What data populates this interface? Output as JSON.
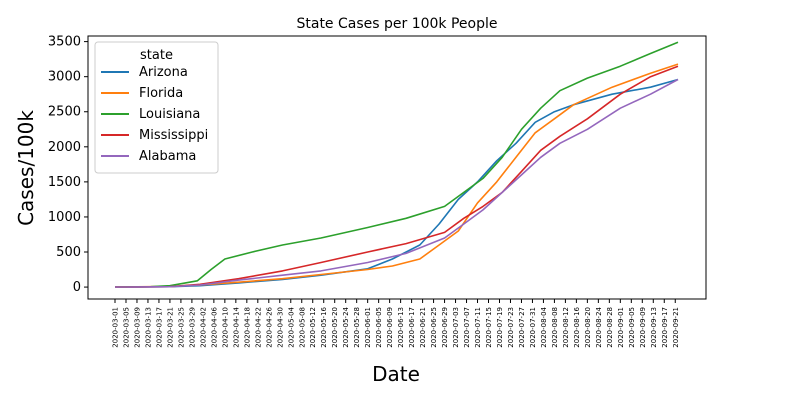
{
  "chart_data": {
    "type": "line",
    "title": "State Cases per 100k People",
    "xlabel": "Date",
    "ylabel": "Cases/100k",
    "x_start": "2020-03-01",
    "x_end": "2020-09-22",
    "x_tick_labels": [
      "2020-03-01",
      "2020-03-05",
      "2020-03-09",
      "2020-03-13",
      "2020-03-17",
      "2020-03-21",
      "2020-03-25",
      "2020-03-29",
      "2020-04-02",
      "2020-04-06",
      "2020-04-10",
      "2020-04-14",
      "2020-04-18",
      "2020-04-22",
      "2020-04-26",
      "2020-04-30",
      "2020-05-04",
      "2020-05-08",
      "2020-05-12",
      "2020-05-16",
      "2020-05-20",
      "2020-05-24",
      "2020-05-28",
      "2020-06-01",
      "2020-06-05",
      "2020-06-09",
      "2020-06-13",
      "2020-06-17",
      "2020-06-21",
      "2020-06-25",
      "2020-06-29",
      "2020-07-03",
      "2020-07-07",
      "2020-07-11",
      "2020-07-15",
      "2020-07-19",
      "2020-07-23",
      "2020-07-27",
      "2020-07-31",
      "2020-08-04",
      "2020-08-08",
      "2020-08-12",
      "2020-08-16",
      "2020-08-20",
      "2020-08-24",
      "2020-08-28",
      "2020-09-01",
      "2020-09-05",
      "2020-09-09",
      "2020-09-13",
      "2020-09-17",
      "2020-09-21"
    ],
    "y_ticks": [
      0,
      500,
      1000,
      1500,
      2000,
      2500,
      3000,
      3500
    ],
    "ylim": [
      -170,
      3580
    ],
    "grid": false,
    "legend": {
      "title": "state",
      "placement": "top-left"
    },
    "series": [
      {
        "name": "Arizona",
        "color": "#1f77b4",
        "points": [
          [
            "2020-03-01",
            0
          ],
          [
            "2020-03-21",
            5
          ],
          [
            "2020-04-01",
            20
          ],
          [
            "2020-04-15",
            60
          ],
          [
            "2020-05-01",
            110
          ],
          [
            "2020-05-15",
            170
          ],
          [
            "2020-06-01",
            260
          ],
          [
            "2020-06-10",
            400
          ],
          [
            "2020-06-20",
            600
          ],
          [
            "2020-06-27",
            900
          ],
          [
            "2020-07-04",
            1250
          ],
          [
            "2020-07-11",
            1500
          ],
          [
            "2020-07-18",
            1800
          ],
          [
            "2020-07-25",
            2050
          ],
          [
            "2020-08-01",
            2350
          ],
          [
            "2020-08-08",
            2500
          ],
          [
            "2020-08-15",
            2600
          ],
          [
            "2020-08-29",
            2750
          ],
          [
            "2020-09-12",
            2850
          ],
          [
            "2020-09-22",
            2960
          ]
        ]
      },
      {
        "name": "Florida",
        "color": "#ff7f0e",
        "points": [
          [
            "2020-03-01",
            0
          ],
          [
            "2020-03-21",
            10
          ],
          [
            "2020-04-01",
            30
          ],
          [
            "2020-04-15",
            70
          ],
          [
            "2020-05-01",
            120
          ],
          [
            "2020-05-15",
            180
          ],
          [
            "2020-06-01",
            250
          ],
          [
            "2020-06-10",
            300
          ],
          [
            "2020-06-20",
            400
          ],
          [
            "2020-06-27",
            600
          ],
          [
            "2020-07-04",
            800
          ],
          [
            "2020-07-11",
            1200
          ],
          [
            "2020-07-18",
            1500
          ],
          [
            "2020-07-25",
            1850
          ],
          [
            "2020-08-01",
            2200
          ],
          [
            "2020-08-08",
            2400
          ],
          [
            "2020-08-15",
            2600
          ],
          [
            "2020-08-29",
            2850
          ],
          [
            "2020-09-12",
            3050
          ],
          [
            "2020-09-22",
            3180
          ]
        ]
      },
      {
        "name": "Louisiana",
        "color": "#2ca02c",
        "points": [
          [
            "2020-03-01",
            0
          ],
          [
            "2020-03-14",
            5
          ],
          [
            "2020-03-21",
            20
          ],
          [
            "2020-03-31",
            90
          ],
          [
            "2020-04-05",
            250
          ],
          [
            "2020-04-10",
            400
          ],
          [
            "2020-04-20",
            500
          ],
          [
            "2020-05-01",
            600
          ],
          [
            "2020-05-15",
            700
          ],
          [
            "2020-06-01",
            850
          ],
          [
            "2020-06-15",
            980
          ],
          [
            "2020-06-29",
            1150
          ],
          [
            "2020-07-06",
            1350
          ],
          [
            "2020-07-13",
            1550
          ],
          [
            "2020-07-20",
            1850
          ],
          [
            "2020-07-27",
            2250
          ],
          [
            "2020-08-03",
            2550
          ],
          [
            "2020-08-10",
            2800
          ],
          [
            "2020-08-20",
            2980
          ],
          [
            "2020-09-01",
            3150
          ],
          [
            "2020-09-12",
            3330
          ],
          [
            "2020-09-22",
            3490
          ]
        ]
      },
      {
        "name": "Mississippi",
        "color": "#d62728",
        "points": [
          [
            "2020-03-01",
            0
          ],
          [
            "2020-03-21",
            5
          ],
          [
            "2020-04-01",
            40
          ],
          [
            "2020-04-15",
            120
          ],
          [
            "2020-05-01",
            230
          ],
          [
            "2020-05-15",
            350
          ],
          [
            "2020-06-01",
            500
          ],
          [
            "2020-06-15",
            620
          ],
          [
            "2020-06-29",
            780
          ],
          [
            "2020-07-06",
            980
          ],
          [
            "2020-07-13",
            1150
          ],
          [
            "2020-07-20",
            1350
          ],
          [
            "2020-07-27",
            1650
          ],
          [
            "2020-08-03",
            1950
          ],
          [
            "2020-08-10",
            2150
          ],
          [
            "2020-08-20",
            2400
          ],
          [
            "2020-09-01",
            2750
          ],
          [
            "2020-09-12",
            3000
          ],
          [
            "2020-09-22",
            3150
          ]
        ]
      },
      {
        "name": "Alabama",
        "color": "#9467bd",
        "points": [
          [
            "2020-03-01",
            0
          ],
          [
            "2020-03-21",
            5
          ],
          [
            "2020-04-01",
            30
          ],
          [
            "2020-04-15",
            100
          ],
          [
            "2020-05-01",
            170
          ],
          [
            "2020-05-15",
            230
          ],
          [
            "2020-06-01",
            350
          ],
          [
            "2020-06-15",
            480
          ],
          [
            "2020-06-29",
            700
          ],
          [
            "2020-07-06",
            900
          ],
          [
            "2020-07-13",
            1100
          ],
          [
            "2020-07-20",
            1350
          ],
          [
            "2020-07-27",
            1600
          ],
          [
            "2020-08-03",
            1850
          ],
          [
            "2020-08-10",
            2050
          ],
          [
            "2020-08-20",
            2250
          ],
          [
            "2020-09-01",
            2550
          ],
          [
            "2020-09-12",
            2750
          ],
          [
            "2020-09-22",
            2960
          ]
        ]
      }
    ]
  }
}
